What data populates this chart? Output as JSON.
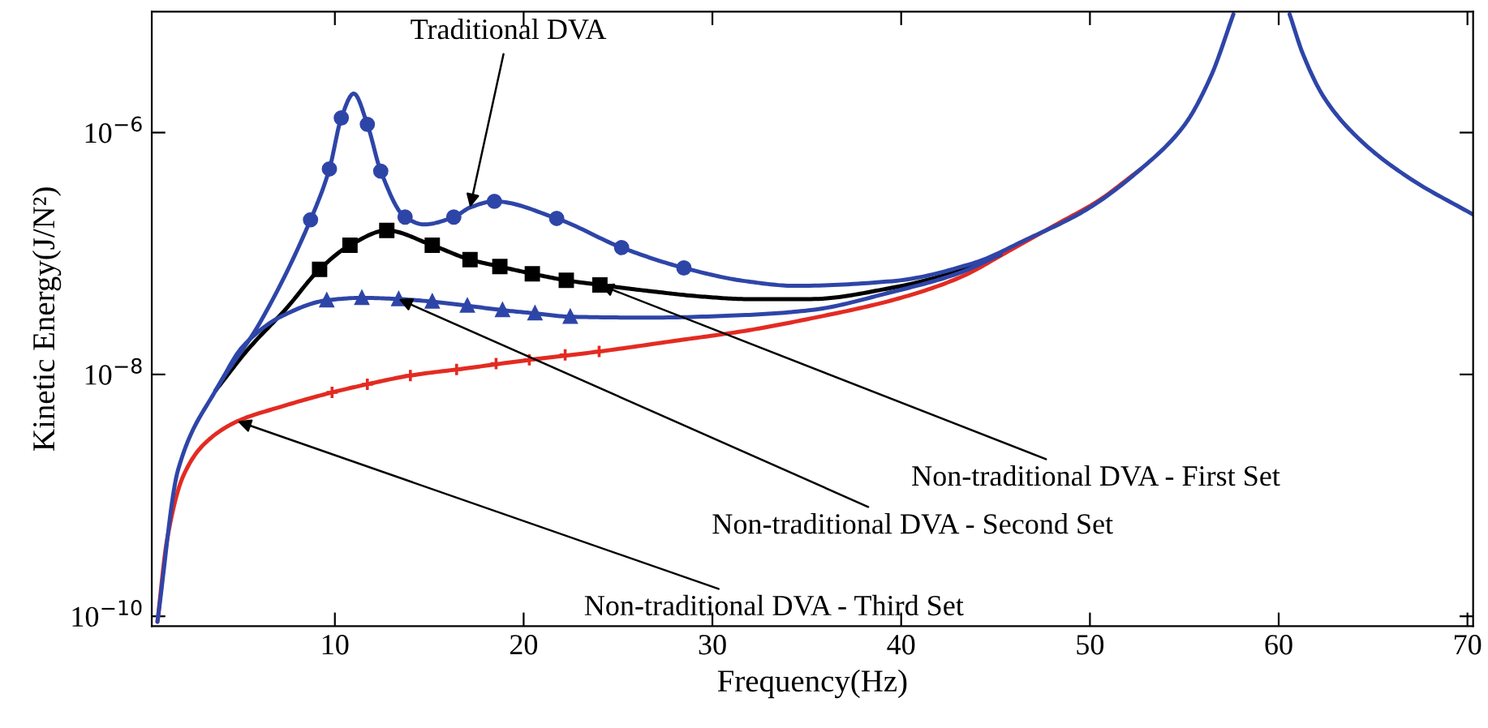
{
  "chart_data": {
    "type": "line",
    "xlabel": "Frequency(Hz)",
    "ylabel": "Kinetic Energy(J/N²)",
    "log": "y",
    "xlim": [
      0.3,
      70.3
    ],
    "xticks": [
      10,
      20,
      30,
      40,
      50,
      60,
      70
    ],
    "ylim": [
      8.3e-11,
      1e-05
    ],
    "yticks": [
      {
        "value": 1e-10,
        "label": "10$^{−10}$"
      },
      {
        "value": 1e-08,
        "label": "10$^{−8}$"
      },
      {
        "value": 1e-06,
        "label": "10$^{−6}$"
      }
    ],
    "grid": false,
    "series": [
      {
        "color": "#e32b22",
        "x": [
          0.6,
          1.11,
          1.97,
          3.12,
          4.84,
          7.13,
          9.85,
          11.72,
          14.0,
          16.88,
          20.32,
          24.04,
          28.05,
          31.78,
          35.2,
          39.5,
          42.97,
          45.8,
          48.1,
          50.4,
          52.7
        ],
        "values": [
          9e-11,
          4.3e-10,
          1.45e-09,
          2.7e-09,
          4.1e-09,
          5.4e-09,
          7.1e-09,
          8.3e-09,
          9.8e-09,
          1.12e-08,
          1.32e-08,
          1.55e-08,
          1.9e-08,
          2.3e-08,
          2.9e-08,
          4.1e-08,
          6.2e-08,
          1.07e-07,
          1.7e-07,
          2.7e-07,
          5e-07
        ]
      },
      {
        "type": "scatter",
        "marker": "cross",
        "color": "#e32b22",
        "x": [
          9.85,
          11.72,
          14.0,
          16.45,
          18.54,
          20.3,
          22.2,
          24.0
        ],
        "values": [
          7.1e-09,
          8.3e-09,
          9.8e-09,
          1.1e-08,
          1.23e-08,
          1.32e-08,
          1.45e-08,
          1.55e-08
        ]
      },
      {
        "color": "#000000",
        "x": [
          3.69,
          5.41,
          7.42,
          9.19,
          10.8,
          12.75,
          15.16,
          17.16,
          18.74,
          20.46,
          22.26,
          24.04,
          26.62,
          29.49,
          31.78,
          35.2,
          39.5,
          42.97,
          45.25
        ],
        "values": [
          7.4e-09,
          1.62e-08,
          3.5e-08,
          7.4e-08,
          1.17e-07,
          1.55e-07,
          1.17e-07,
          8.9e-08,
          7.8e-08,
          6.8e-08,
          6e-08,
          5.5e-08,
          4.9e-08,
          4.4e-08,
          4.2e-08,
          4.2e-08,
          5.2e-08,
          7.1e-08,
          9.8e-08
        ]
      },
      {
        "type": "scatter",
        "marker": "square",
        "color": "#000000",
        "x": [
          9.19,
          10.8,
          12.75,
          15.16,
          17.16,
          18.74,
          20.46,
          22.26,
          24.04
        ],
        "values": [
          7.4e-08,
          1.17e-07,
          1.55e-07,
          1.17e-07,
          8.9e-08,
          7.8e-08,
          6.8e-08,
          6e-08,
          5.5e-08
        ]
      },
      {
        "color": "#2e45a8",
        "x": [
          3.69,
          5.12,
          7.13,
          9.57,
          11.43,
          13.38,
          15.16,
          17.02,
          18.88,
          20.6,
          22.47,
          26.6,
          31.78,
          35.2,
          39.5,
          42.97,
          45.25
        ],
        "values": [
          7.4e-09,
          1.7e-08,
          3e-08,
          4.1e-08,
          4.3e-08,
          4.2e-08,
          4e-08,
          3.7e-08,
          3.4e-08,
          3.2e-08,
          3e-08,
          2.95e-08,
          3.1e-08,
          3.4e-08,
          4.8e-08,
          6.8e-08,
          9.8e-08
        ]
      },
      {
        "type": "scatter",
        "marker": "triangle",
        "color": "#2e45a8",
        "x": [
          9.57,
          11.43,
          13.38,
          15.16,
          17.02,
          18.88,
          20.6,
          22.47
        ],
        "values": [
          4.1e-08,
          4.3e-08,
          4.2e-08,
          4e-08,
          3.7e-08,
          3.4e-08,
          3.2e-08,
          3e-08
        ]
      },
      {
        "color": "#2e45a8",
        "x": [
          0.6,
          1.69,
          3.69,
          5.98,
          8.71,
          9.71,
          10.34,
          11.0,
          11.72,
          12.43,
          13.72,
          14.72,
          16.3,
          17.16,
          18.45,
          21.75,
          25.19,
          28.49,
          31.78,
          34.36,
          39.5,
          43.8,
          46.7,
          49.8,
          52.7,
          55.0,
          56.4,
          57.6,
          59.0,
          60.58,
          61.3,
          62.45,
          64.45,
          67.03,
          70.3
        ],
        "values": [
          9e-11,
          1.62e-09,
          7.4e-09,
          2.6e-08,
          1.9e-07,
          5e-07,
          1.32e-06,
          2.1e-06,
          1.17e-06,
          4.8e-07,
          2e-07,
          1.74e-07,
          2e-07,
          2.4e-07,
          2.7e-07,
          1.95e-07,
          1.12e-07,
          7.6e-08,
          5.9e-08,
          5.4e-08,
          5.9e-08,
          8.3e-08,
          1.32e-07,
          2.3e-07,
          5e-07,
          1.15e-06,
          2.9e-06,
          9.5e-06,
          null,
          9.5e-06,
          4.4e-06,
          1.9e-06,
          8.3e-07,
          4.1e-07,
          2.1e-07
        ]
      },
      {
        "type": "scatter",
        "marker": "circle",
        "color": "#2e45a8",
        "x": [
          8.71,
          9.71,
          10.34,
          11.72,
          12.43,
          13.72,
          16.3,
          18.45,
          21.75,
          25.19,
          28.49
        ],
        "values": [
          1.9e-07,
          5e-07,
          1.32e-06,
          1.17e-06,
          4.8e-07,
          2e-07,
          2e-07,
          2.7e-07,
          1.95e-07,
          1.12e-07,
          7.6e-08
        ]
      }
    ],
    "annotations": [
      {
        "text": "Traditional DVA",
        "x": 17.16,
        "y": 2.4e-07
      },
      {
        "text": "Non-traditional DVA - First Set",
        "x": 24.04,
        "y": 5.5e-08
      },
      {
        "text": "Non-traditional DVA - Second Set",
        "x": 13.38,
        "y": 4.2e-08
      },
      {
        "text": "Non-traditional DVA - Third Set",
        "x": 4.84,
        "y": 4.1e-09
      }
    ]
  }
}
